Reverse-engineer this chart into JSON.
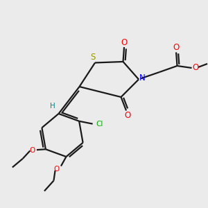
{
  "background_color": "#ebebeb",
  "bond_color": "#1a1a1a",
  "S_color": "#999900",
  "N_color": "#0000ff",
  "O_color": "#ff0000",
  "Cl_color": "#00aa00",
  "H_color": "#008888",
  "figsize": [
    3.0,
    3.0
  ],
  "dpi": 100,
  "xlim": [
    0,
    10
  ],
  "ylim": [
    0,
    10
  ]
}
